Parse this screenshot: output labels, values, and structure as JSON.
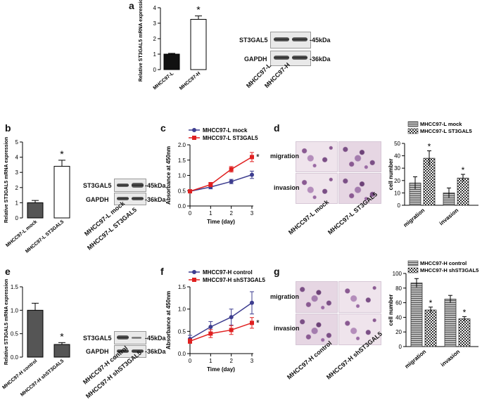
{
  "panels": {
    "a": "a",
    "b": "b",
    "c": "c",
    "d": "d",
    "e": "e",
    "f": "f",
    "g": "g"
  },
  "chart_data": [
    {
      "id": "a",
      "type": "bar",
      "categories": [
        "MHCC97-L",
        "MHCC97-H"
      ],
      "values": [
        1.0,
        3.25
      ],
      "errors": [
        0.05,
        0.22
      ],
      "fills": [
        "#111111",
        "#ffffff"
      ],
      "ylabel": "Relative ST3GAL5 mRNA expression",
      "ylim": [
        0,
        4
      ],
      "yticks": [
        "0",
        "1",
        "2",
        "3",
        "4"
      ],
      "annotation": "*"
    },
    {
      "id": "b",
      "type": "bar",
      "categories": [
        "MHCC97-L mock",
        "MHCC97-L ST3GAL5"
      ],
      "values": [
        1.0,
        3.4
      ],
      "errors": [
        0.15,
        0.4
      ],
      "fills": [
        "#555555",
        "#ffffff"
      ],
      "ylabel": "Relative ST3GAL5 mRNA expression",
      "ylim": [
        0,
        5
      ],
      "yticks": [
        "0",
        "1",
        "2",
        "3",
        "4",
        "5"
      ],
      "annotation": "*"
    },
    {
      "id": "c",
      "type": "line",
      "x": [
        0,
        1,
        2,
        3
      ],
      "series": [
        {
          "name": "MHCC97-L mock",
          "color": "#3d3d8f",
          "values": [
            0.48,
            0.62,
            0.8,
            1.02
          ],
          "errors": [
            0.03,
            0.06,
            0.07,
            0.12
          ]
        },
        {
          "name": "MHCC97-L ST3GAL5",
          "color": "#e02020",
          "values": [
            0.48,
            0.7,
            1.2,
            1.6
          ],
          "errors": [
            0.03,
            0.07,
            0.09,
            0.15
          ]
        }
      ],
      "xlabel": "Time (day)",
      "ylabel": "Absorbance at 450nm",
      "xlim": [
        0,
        3
      ],
      "ylim": [
        0,
        2.0
      ],
      "xticks": [
        "0",
        "1",
        "2",
        "3"
      ],
      "yticks": [
        "0.0",
        "0.5",
        "1.0",
        "1.5",
        "2.0"
      ],
      "annotation": "*"
    },
    {
      "id": "d",
      "type": "bar",
      "categories": [
        "migration",
        "invasion"
      ],
      "series": [
        {
          "name": "MHCC97-L mock",
          "values": [
            18,
            10
          ],
          "errors": [
            5,
            4
          ]
        },
        {
          "name": "MHCC97-L ST3GAL5",
          "values": [
            38,
            22
          ],
          "errors": [
            6,
            3
          ]
        }
      ],
      "ylabel": "cell number",
      "ylim": [
        0,
        50
      ],
      "yticks": [
        "0",
        "10",
        "20",
        "30",
        "40",
        "50"
      ],
      "annotation": "*"
    },
    {
      "id": "e",
      "type": "bar",
      "categories": [
        "MHCC97-H control",
        "MHCC97-H shST3GAL5"
      ],
      "values": [
        1.0,
        0.27
      ],
      "errors": [
        0.15,
        0.04
      ],
      "fills": [
        "#555555",
        "#555555"
      ],
      "ylabel": "Relative ST3GAL5 mRNA expression",
      "ylim": [
        0,
        1.5
      ],
      "yticks": [
        "0.0",
        "0.5",
        "1.0",
        "1.5"
      ],
      "annotation": "*"
    },
    {
      "id": "f",
      "type": "line",
      "x": [
        0,
        1,
        2,
        3
      ],
      "series": [
        {
          "name": "MHCC97-H control",
          "color": "#3d3d8f",
          "values": [
            0.33,
            0.6,
            0.82,
            1.14
          ],
          "errors": [
            0.08,
            0.12,
            0.18,
            0.25
          ]
        },
        {
          "name": "MHCC97-H shST3GAL5",
          "color": "#e02020",
          "values": [
            0.28,
            0.45,
            0.53,
            0.69
          ],
          "errors": [
            0.05,
            0.09,
            0.1,
            0.12
          ]
        }
      ],
      "xlabel": "Time (day)",
      "ylabel": "Absorbance at 450nm",
      "xlim": [
        0,
        3
      ],
      "ylim": [
        0,
        1.5
      ],
      "xticks": [
        "0",
        "1",
        "2",
        "3"
      ],
      "yticks": [
        "0.0",
        "0.5",
        "1.0",
        "1.5"
      ],
      "annotation": "*"
    },
    {
      "id": "g",
      "type": "bar",
      "categories": [
        "migration",
        "invasion"
      ],
      "series": [
        {
          "name": "MHCC97-H control",
          "values": [
            87,
            65
          ],
          "errors": [
            6,
            5
          ]
        },
        {
          "name": "MHCC97-H shST3GAL5",
          "values": [
            50,
            38
          ],
          "errors": [
            4,
            3
          ]
        }
      ],
      "ylabel": "cell number",
      "ylim": [
        0,
        100
      ],
      "yticks": [
        "0",
        "20",
        "40",
        "60",
        "80",
        "100"
      ],
      "annotation": "*"
    }
  ],
  "blots": {
    "a": {
      "row1": "ST3GAL5",
      "row2": "GAPDH",
      "kda1": "45kDa",
      "kda2": "36kDa",
      "lanes": [
        "MHCC97-L",
        "MHCC97-H"
      ]
    },
    "b": {
      "row1": "ST3GAL5",
      "row2": "GAPDH",
      "kda1": "45kDa",
      "kda2": "36kDa",
      "lanes": [
        "MHCC97-L mock",
        "MHCC97-L ST3GAL5"
      ]
    },
    "e": {
      "row1": "ST3GAL5",
      "row2": "GAPDH",
      "kda1": "45kDa",
      "kda2": "36kDa",
      "lanes": [
        "MHCC97-H control",
        "MHCC97-H shST3GAL5"
      ]
    }
  },
  "micrographs": {
    "d": {
      "rows": [
        "migration",
        "invasion"
      ],
      "cols": [
        "MHCC97-L mock",
        "MHCC97-L ST3GAL5"
      ]
    },
    "g": {
      "rows": [
        "migration",
        "invasion"
      ],
      "cols": [
        "MHCC97-H control",
        "MHCC97-H shST3GAL5"
      ]
    }
  }
}
